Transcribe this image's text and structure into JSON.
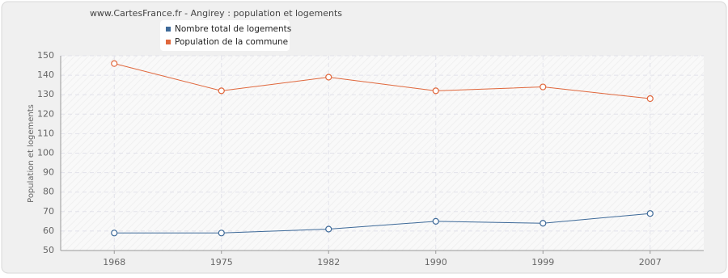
{
  "chart_data": {
    "type": "line",
    "title": "www.CartesFrance.fr - Angirey : population et logements",
    "y_label": "Population et logements",
    "categories": [
      "1968",
      "1975",
      "1982",
      "1990",
      "1999",
      "2007"
    ],
    "series": [
      {
        "name": "Nombre total de logements",
        "color": "#3e6a99",
        "values": [
          59,
          59,
          61,
          65,
          64,
          69
        ]
      },
      {
        "name": "Population de la commune",
        "color": "#e0673c",
        "values": [
          146,
          132,
          139,
          132,
          134,
          128
        ]
      }
    ],
    "ylim": [
      50,
      150
    ],
    "yticks": [
      50,
      60,
      70,
      80,
      90,
      100,
      110,
      120,
      130,
      140,
      150
    ],
    "grid": true
  }
}
